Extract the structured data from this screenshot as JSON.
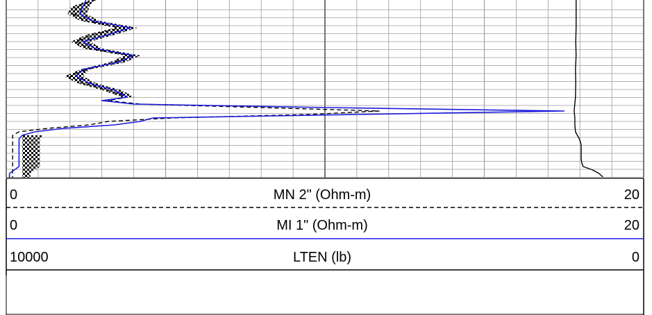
{
  "chart_data": {
    "type": "line",
    "title": "",
    "grid": true,
    "x_scale": "linear",
    "series": [
      {
        "name": "MN 2\" (Ohm-m)",
        "scale_min": "0",
        "scale_max": "20",
        "xlim": [
          0,
          20
        ],
        "color": "#000000",
        "style": "dashed",
        "y": [
          0,
          10,
          20,
          30,
          40,
          50,
          60,
          70,
          80,
          90,
          100,
          110,
          120,
          130,
          140,
          145,
          150,
          155,
          160,
          165,
          170,
          175,
          180,
          185,
          190,
          195,
          200,
          210,
          220,
          230,
          240,
          250,
          256
        ],
        "x": [
          2.8,
          2.2,
          2.1,
          2.5,
          3.6,
          2.7,
          2.2,
          2.6,
          3.9,
          3.4,
          2.5,
          2.0,
          2.4,
          3.2,
          3.8,
          3.2,
          4.2,
          8.0,
          11.7,
          9.5,
          5.2,
          3.2,
          2.6,
          1.3,
          0.4,
          0.2,
          0.2,
          0.2,
          0.2,
          0.2,
          0.2,
          0.2,
          0.2
        ]
      },
      {
        "name": "MI 1\" (Ohm-m)",
        "scale_min": "0",
        "scale_max": "20",
        "xlim": [
          0,
          20
        ],
        "color": "#1a1adb",
        "style": "solid",
        "y": [
          0,
          10,
          20,
          30,
          40,
          50,
          60,
          70,
          80,
          90,
          100,
          110,
          120,
          130,
          140,
          145,
          150,
          155,
          160,
          165,
          170,
          175,
          180,
          185,
          190,
          195,
          200,
          210,
          220,
          230,
          240,
          250,
          256
        ],
        "x": [
          2.5,
          2.4,
          2.3,
          2.7,
          3.9,
          3.2,
          2.4,
          2.8,
          4.0,
          3.5,
          2.4,
          2.2,
          2.6,
          3.4,
          3.8,
          3.0,
          4.0,
          10.0,
          17.5,
          11.0,
          4.6,
          4.2,
          3.4,
          1.8,
          0.9,
          0.5,
          0.4,
          0.4,
          0.4,
          0.4,
          0.4,
          0.1,
          0.1
        ]
      },
      {
        "name": "LTEN (lb)",
        "scale_min": "10000",
        "scale_max": "0",
        "xlim": [
          10000,
          0
        ],
        "color": "#000000",
        "style": "solid",
        "y": [
          0,
          20,
          40,
          60,
          80,
          100,
          120,
          140,
          160,
          170,
          180,
          190,
          195,
          200,
          205,
          210,
          220,
          230,
          235,
          240,
          245,
          250,
          255
        ],
        "x": [
          1060,
          1060,
          1060,
          1065,
          1060,
          1070,
          1065,
          1070,
          1090,
          1080,
          1080,
          1070,
          1040,
          1010,
          990,
          980,
          980,
          980,
          970,
          950,
          800,
          700,
          640
        ]
      }
    ]
  }
}
